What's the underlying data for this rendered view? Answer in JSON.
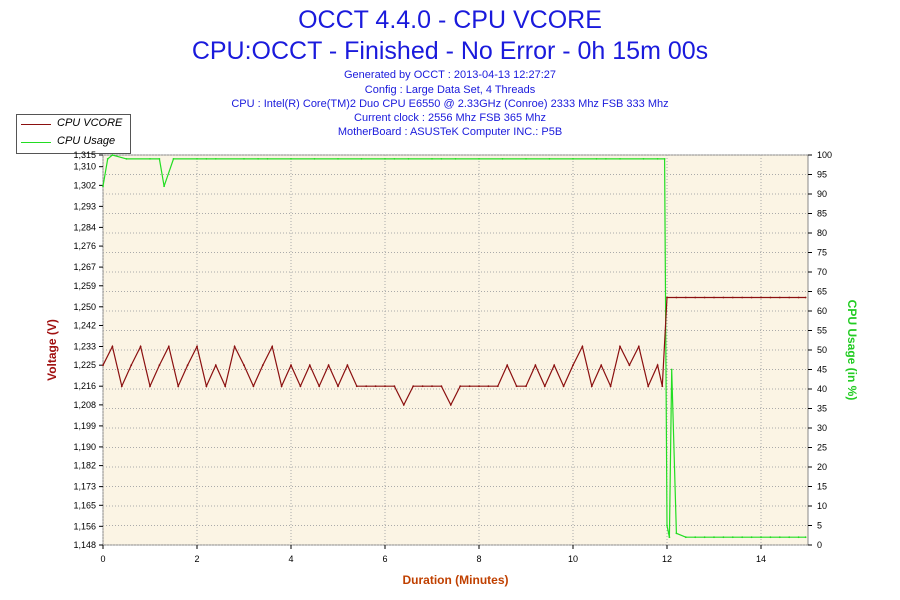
{
  "title": "OCCT 4.4.0 - CPU VCORE",
  "subtitle": "CPU:OCCT - Finished - No Error - 0h 15m 00s",
  "info_lines": [
    "Generated by OCCT : 2013-04-13 12:27:27",
    "Config : Large Data Set, 4 Threads",
    "CPU : Intel(R) Core(TM)2 Duo CPU E6550 @ 2.33GHz (Conroe) 2333 Mhz FSB 333 Mhz",
    "Current clock : 2556 Mhz FSB 365 Mhz",
    "MotherBoard : ASUSTeK Computer INC.: P5B"
  ],
  "legend": {
    "vcore": "CPU VCORE",
    "usage": "CPU Usage"
  },
  "colors": {
    "vcore": "#8b1010",
    "usage": "#22dd22",
    "plot_bg": "#fbf4e4",
    "title": "#1a1adc"
  },
  "chart_data": {
    "type": "line",
    "xlabel": "Duration (Minutes)",
    "ylabel_left": "Voltage (V)",
    "ylabel_right": "CPU Usage (in %)",
    "xlim": [
      0,
      15
    ],
    "ylim_left": [
      1.148,
      1.315
    ],
    "ylim_right": [
      0,
      100
    ],
    "x_ticks": [
      "0",
      "2",
      "4",
      "6",
      "8",
      "10",
      "12",
      "14"
    ],
    "y_left_ticks": [
      "1,148",
      "1,156",
      "1,165",
      "1,173",
      "1,182",
      "1,190",
      "1,199",
      "1,208",
      "1,216",
      "1,225",
      "1,233",
      "1,242",
      "1,250",
      "1,259",
      "1,267",
      "1,276",
      "1,284",
      "1,293",
      "1,302",
      "1,310",
      "1,315"
    ],
    "y_right_ticks": [
      "0",
      "5",
      "10",
      "15",
      "20",
      "25",
      "30",
      "35",
      "40",
      "45",
      "50",
      "55",
      "60",
      "65",
      "70",
      "75",
      "80",
      "85",
      "90",
      "95",
      "100"
    ],
    "grid": true,
    "series": [
      {
        "name": "CPU VCORE",
        "axis": "left",
        "x": [
          0,
          0.2,
          0.4,
          0.6,
          0.8,
          1.0,
          1.2,
          1.4,
          1.6,
          1.8,
          2.0,
          2.2,
          2.4,
          2.6,
          2.8,
          3.0,
          3.2,
          3.4,
          3.6,
          3.8,
          4.0,
          4.2,
          4.4,
          4.6,
          4.8,
          5.0,
          5.2,
          5.4,
          5.6,
          5.8,
          6.0,
          6.2,
          6.4,
          6.6,
          6.8,
          7.0,
          7.2,
          7.4,
          7.6,
          7.8,
          8.0,
          8.2,
          8.4,
          8.6,
          8.8,
          9.0,
          9.2,
          9.4,
          9.6,
          9.8,
          10.0,
          10.2,
          10.4,
          10.6,
          10.8,
          11.0,
          11.2,
          11.4,
          11.6,
          11.8,
          11.9,
          12.0,
          12.2,
          12.4,
          12.6,
          12.8,
          13.0,
          13.2,
          13.4,
          13.6,
          13.8,
          14.0,
          14.2,
          14.4,
          14.6,
          14.8,
          14.95
        ],
        "y": [
          1.225,
          1.233,
          1.216,
          1.225,
          1.233,
          1.216,
          1.225,
          1.233,
          1.216,
          1.225,
          1.233,
          1.216,
          1.225,
          1.216,
          1.233,
          1.225,
          1.216,
          1.225,
          1.233,
          1.216,
          1.225,
          1.216,
          1.225,
          1.216,
          1.225,
          1.216,
          1.225,
          1.216,
          1.216,
          1.216,
          1.216,
          1.216,
          1.208,
          1.216,
          1.216,
          1.216,
          1.216,
          1.208,
          1.216,
          1.216,
          1.216,
          1.216,
          1.216,
          1.225,
          1.216,
          1.216,
          1.225,
          1.216,
          1.225,
          1.216,
          1.225,
          1.233,
          1.216,
          1.225,
          1.216,
          1.233,
          1.225,
          1.233,
          1.216,
          1.225,
          1.216,
          1.254,
          1.254,
          1.254,
          1.254,
          1.254,
          1.254,
          1.254,
          1.254,
          1.254,
          1.254,
          1.254,
          1.254,
          1.254,
          1.254,
          1.254,
          1.254
        ]
      },
      {
        "name": "CPU Usage",
        "axis": "right",
        "x": [
          0,
          0.1,
          0.2,
          0.5,
          1.0,
          1.2,
          1.3,
          1.5,
          2.0,
          2.2,
          2.4,
          3.0,
          3.3,
          3.5,
          4.0,
          4.5,
          5.0,
          5.5,
          6.0,
          6.2,
          6.5,
          7.0,
          7.2,
          7.5,
          8.0,
          8.5,
          9.0,
          9.5,
          10.0,
          10.5,
          10.7,
          11.0,
          11.5,
          11.8,
          11.95,
          12.0,
          12.05,
          12.1,
          12.2,
          12.4,
          12.6,
          12.8,
          13.0,
          13.2,
          13.4,
          13.6,
          13.8,
          14.0,
          14.2,
          14.4,
          14.6,
          14.8,
          14.95
        ],
        "y": [
          92,
          99,
          100,
          99,
          99,
          99,
          92,
          99,
          99,
          99,
          99,
          99,
          99,
          99,
          99,
          99,
          99,
          99,
          99,
          99,
          99,
          99,
          99,
          99,
          99,
          99,
          99,
          99,
          99,
          99,
          99,
          99,
          99,
          99,
          99,
          5,
          2,
          45,
          3,
          2,
          2,
          2,
          2,
          2,
          2,
          2,
          2,
          2,
          2,
          2,
          2,
          2,
          2
        ]
      }
    ]
  }
}
